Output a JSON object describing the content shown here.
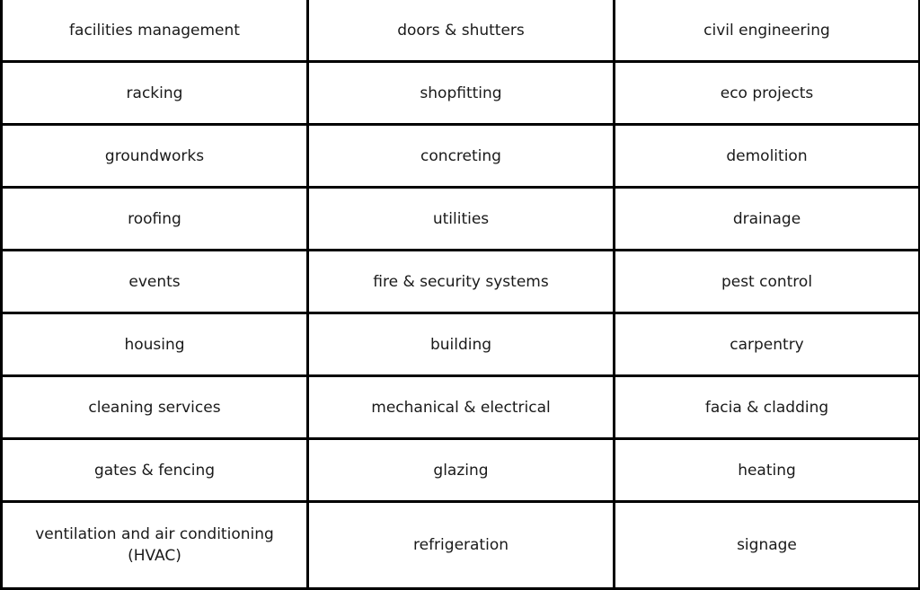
{
  "table": {
    "rows": [
      [
        "facilities management",
        "doors & shutters",
        "civil engineering"
      ],
      [
        "racking",
        "shopfitting",
        "eco projects"
      ],
      [
        "groundworks",
        "concreting",
        "demolition"
      ],
      [
        "roofing",
        "utilities",
        "drainage"
      ],
      [
        "events",
        "fire & security systems",
        "pest control"
      ],
      [
        "housing",
        "building",
        "carpentry"
      ],
      [
        "cleaning services",
        "mechanical & electrical",
        "facia & cladding"
      ],
      [
        "gates & fencing",
        "glazing",
        "heating"
      ],
      [
        "ventilation and air conditioning (HVAC)",
        "refrigeration",
        "signage"
      ]
    ]
  }
}
